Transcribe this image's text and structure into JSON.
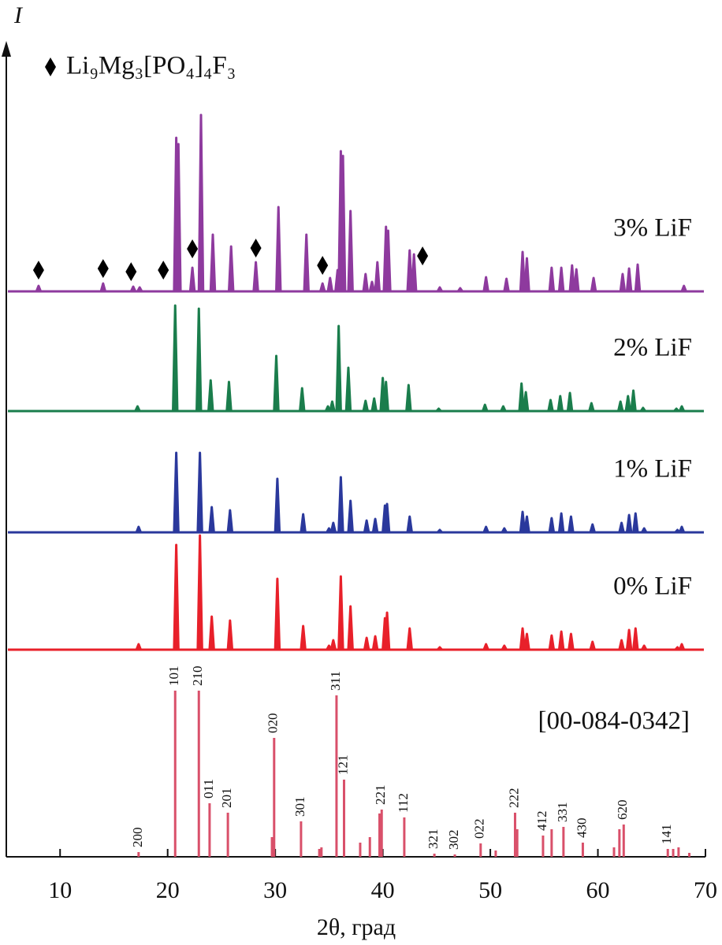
{
  "chart_data": {
    "type": "line",
    "xlabel": "2θ, град",
    "ylabel": "I",
    "xlim": [
      5,
      70
    ],
    "xticks": [
      10,
      20,
      30,
      40,
      50,
      60,
      70
    ],
    "ylim": [
      0,
      1033
    ],
    "markers": {
      "name": "Li₉Mg₃[PO₄]₄F₃",
      "x": [
        8.0,
        14.0,
        16.6,
        19.6,
        22.3,
        28.2,
        34.4,
        43.7
      ],
      "values": [
        745,
        747,
        743,
        745,
        772,
        773,
        751,
        763
      ]
    },
    "series": [
      {
        "name": "3% LiF",
        "color": "#8e3a9e",
        "baseline": 718,
        "x": [
          8.0,
          14.0,
          16.8,
          17.4,
          20.8,
          21.0,
          22.3,
          23.1,
          24.2,
          25.9,
          28.2,
          30.3,
          32.9,
          34.4,
          35.1,
          35.8,
          36.1,
          36.3,
          37.0,
          38.4,
          39.0,
          39.5,
          40.3,
          40.5,
          42.5,
          42.9,
          45.3,
          47.2,
          49.6,
          51.5,
          53.0,
          53.4,
          55.7,
          56.6,
          57.6,
          58.0,
          59.6,
          62.3,
          62.9,
          63.7,
          68.0
        ],
        "values": [
          725,
          728,
          724,
          723,
          913,
          905,
          748,
          942,
          790,
          775,
          755,
          825,
          790,
          728,
          735,
          745,
          896,
          890,
          820,
          740,
          730,
          755,
          800,
          795,
          770,
          765,
          723,
          722,
          736,
          734,
          768,
          760,
          748,
          748,
          751,
          746,
          735,
          740,
          747,
          752,
          725
        ]
      },
      {
        "name": "2% LiF",
        "color": "#1a7d4c",
        "baseline": 566,
        "x": [
          17.2,
          20.7,
          22.9,
          24.0,
          25.7,
          30.1,
          32.5,
          34.9,
          35.3,
          35.9,
          36.8,
          38.4,
          39.2,
          40.0,
          40.3,
          42.4,
          45.2,
          49.5,
          51.2,
          52.9,
          53.3,
          55.6,
          56.5,
          57.4,
          59.4,
          62.1,
          62.8,
          63.3,
          64.2,
          67.3,
          67.8
        ],
        "values": [
          572,
          700,
          696,
          605,
          603,
          636,
          595,
          572,
          578,
          674,
          621,
          579,
          582,
          608,
          603,
          599,
          569,
          574,
          572,
          601,
          590,
          580,
          585,
          589,
          576,
          578,
          585,
          592,
          570,
          569,
          572
        ]
      },
      {
        "name": "1% LiF",
        "color": "#2a389c",
        "baseline": 412,
        "x": [
          17.3,
          20.8,
          23.0,
          24.1,
          25.8,
          30.2,
          32.6,
          35.0,
          35.4,
          36.1,
          37.0,
          38.5,
          39.3,
          40.2,
          40.4,
          42.5,
          45.3,
          49.6,
          51.3,
          53.0,
          53.4,
          55.7,
          56.6,
          57.5,
          59.5,
          62.2,
          62.9,
          63.5,
          64.3,
          67.4,
          67.8
        ],
        "values": [
          419,
          513,
          513,
          444,
          440,
          480,
          435,
          417,
          424,
          482,
          452,
          427,
          429,
          446,
          448,
          432,
          415,
          419,
          417,
          438,
          432,
          430,
          436,
          432,
          422,
          424,
          434,
          436,
          417,
          415,
          419
        ]
      },
      {
        "name": "0% LiF",
        "color": "#e8202a",
        "baseline": 263,
        "x": [
          17.3,
          20.8,
          23.0,
          24.1,
          25.8,
          30.2,
          32.6,
          35.0,
          35.4,
          36.1,
          37.0,
          38.5,
          39.3,
          40.2,
          40.4,
          42.5,
          45.3,
          49.6,
          51.3,
          53.0,
          53.4,
          55.7,
          56.6,
          57.5,
          59.5,
          62.2,
          62.9,
          63.5,
          64.3,
          67.4,
          67.8
        ],
        "values": [
          270,
          396,
          408,
          305,
          300,
          353,
          293,
          268,
          275,
          356,
          318,
          278,
          280,
          303,
          310,
          290,
          266,
          270,
          268,
          290,
          283,
          281,
          286,
          283,
          273,
          275,
          288,
          290,
          268,
          266,
          270
        ]
      }
    ],
    "reference": {
      "name": "[00-084-0342]",
      "color": "#d9506a",
      "x": [
        17.3,
        20.7,
        22.9,
        23.9,
        25.6,
        29.7,
        29.9,
        32.4,
        34.1,
        34.3,
        35.7,
        36.4,
        37.9,
        38.8,
        39.7,
        39.9,
        42.0,
        44.8,
        46.7,
        49.1,
        50.5,
        52.3,
        52.5,
        54.9,
        55.7,
        56.8,
        58.6,
        61.5,
        62.0,
        62.4,
        66.5,
        67.0,
        67.5,
        68.5
      ],
      "values": [
        6,
        211,
        211,
        68,
        56,
        25,
        151,
        45,
        10,
        12,
        205,
        98,
        18,
        25,
        55,
        60,
        50,
        4,
        3,
        17,
        8,
        56,
        35,
        27,
        35,
        38,
        18,
        12,
        35,
        41,
        10,
        10,
        12,
        5
      ],
      "labels": [
        "200",
        "101",
        "210",
        "011",
        "201",
        null,
        "020",
        "301",
        null,
        null,
        "311",
        "121",
        null,
        null,
        null,
        "221",
        "112",
        "321",
        "302",
        "022",
        null,
        "222",
        null,
        "412",
        null,
        "331",
        "430",
        null,
        null,
        "620",
        "141",
        null,
        null,
        null
      ]
    }
  }
}
